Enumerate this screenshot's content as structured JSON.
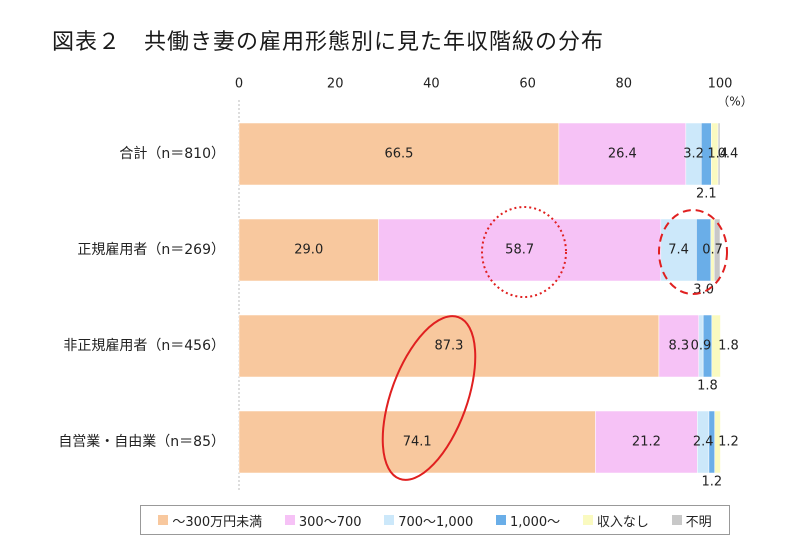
{
  "title": "図表２　共働き妻の雇用形態別に見た年収階級の分布",
  "chart_data": {
    "type": "bar",
    "orientation": "horizontal",
    "stacked": true,
    "title": "図表２　共働き妻の雇用形態別に見た年収階級の分布",
    "xlabel": "",
    "unit_label": "（%）",
    "xlim": [
      0,
      100
    ],
    "xticks": [
      "0",
      "20",
      "40",
      "60",
      "80",
      "100"
    ],
    "categories": [
      "合計（n＝810）",
      "正規雇用者（n＝269）",
      "非正規雇用者（n＝456）",
      "自営業・自由業（n＝85）"
    ],
    "series": [
      {
        "name": "～300万円未満",
        "color": "#f8c89e",
        "values": [
          66.5,
          29.0,
          87.3,
          74.1
        ],
        "labels": [
          "66.5",
          "29.0",
          "87.3",
          "74.1"
        ]
      },
      {
        "name": "300～700",
        "color": "#f6c2f6",
        "values": [
          26.4,
          58.7,
          8.3,
          21.2
        ],
        "labels": [
          "26.4",
          "58.7",
          "8.3",
          "21.2"
        ]
      },
      {
        "name": "700～1,000",
        "color": "#cce8fa",
        "values": [
          3.2,
          7.4,
          0.9,
          2.4
        ],
        "labels": [
          "3.2",
          "7.4",
          "0.9",
          "2.4"
        ]
      },
      {
        "name": "1,000～",
        "color": "#6aaee8",
        "values": [
          2.1,
          3.0,
          1.8,
          1.2
        ],
        "labels": [
          "2.1",
          "3.0",
          "1.8",
          "1.2"
        ]
      },
      {
        "name": "収入なし",
        "color": "#fafac0",
        "values": [
          1.4,
          0.7,
          1.8,
          1.2
        ],
        "labels": [
          "1.4",
          "0.7",
          "1.8",
          "1.2"
        ]
      },
      {
        "name": "不明",
        "color": "#c8c8c8",
        "values": [
          0.4,
          1.2,
          0.0,
          0.0
        ],
        "labels": [
          "0.4",
          "",
          "",
          ""
        ]
      }
    ],
    "legend_position": "bottom",
    "grid": false
  },
  "legend": {
    "items": [
      {
        "label": "～300万円未満",
        "color": "#f8c89e"
      },
      {
        "label": "300～700",
        "color": "#f6c2f6"
      },
      {
        "label": "700～1,000",
        "color": "#cce8fa"
      },
      {
        "label": "1,000～",
        "color": "#6aaee8"
      },
      {
        "label": "収入なし",
        "color": "#fafac0"
      },
      {
        "label": "不明",
        "color": "#c8c8c8"
      }
    ]
  }
}
